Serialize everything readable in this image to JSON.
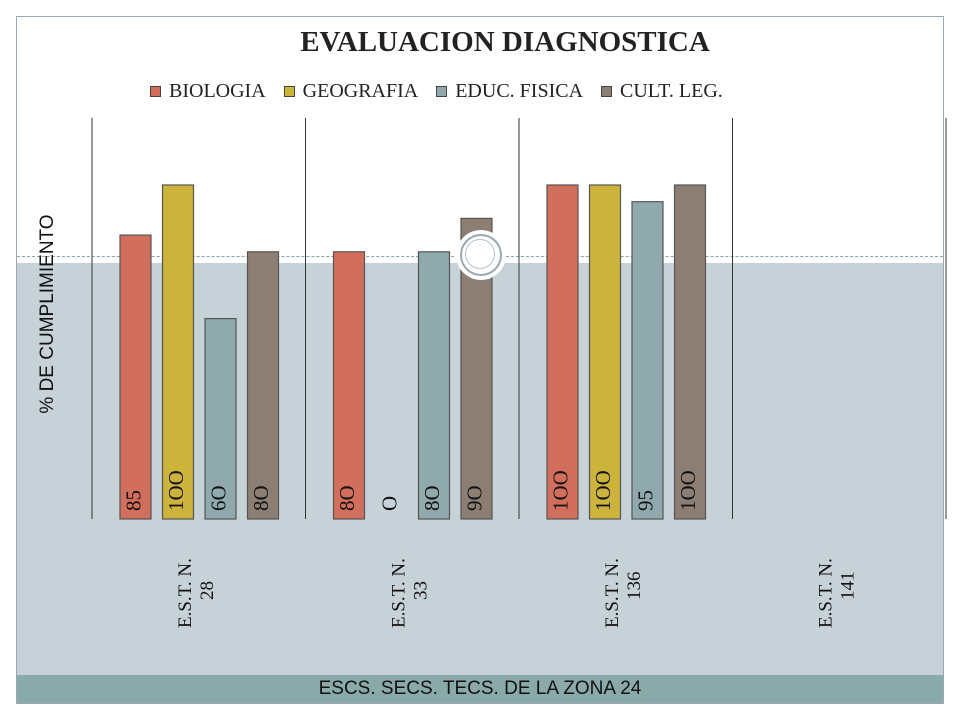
{
  "chart_data": {
    "type": "bar",
    "title": "EVALUACION DIAGNOSTICA",
    "xlabel": "ESCS. SECS. TECS.  DE  LA  ZONA  24",
    "ylabel": "%  DE CUMPLIMIENTO",
    "ylim": [
      0,
      100
    ],
    "legend_position": "top",
    "grid": false,
    "categories": [
      [
        "E.S.T. N.",
        "28"
      ],
      [
        "E.S.T. N.",
        "33"
      ],
      [
        "E.S.T. N.",
        "136"
      ],
      [
        "E.S.T. N.",
        "141"
      ]
    ],
    "series": [
      {
        "name": "BIOLOGIA",
        "color": "#d26f5c",
        "values": [
          85,
          80,
          100,
          null
        ],
        "labels": [
          "85",
          "8O",
          "1OO",
          ""
        ]
      },
      {
        "name": "GEOGRAFIA",
        "color": "#ccb43c",
        "values": [
          100,
          0,
          100,
          null
        ],
        "labels": [
          "1OO",
          "O",
          "1OO",
          ""
        ]
      },
      {
        "name": "EDUC. FISICA",
        "color": "#8fa9ac",
        "values": [
          60,
          80,
          95,
          null
        ],
        "labels": [
          "6O",
          "8O",
          "95",
          ""
        ]
      },
      {
        "name": "CULT. LEG.",
        "color": "#8c7e72",
        "values": [
          80,
          90,
          100,
          null
        ],
        "labels": [
          "8O",
          "9O",
          "1OO",
          ""
        ]
      }
    ]
  }
}
